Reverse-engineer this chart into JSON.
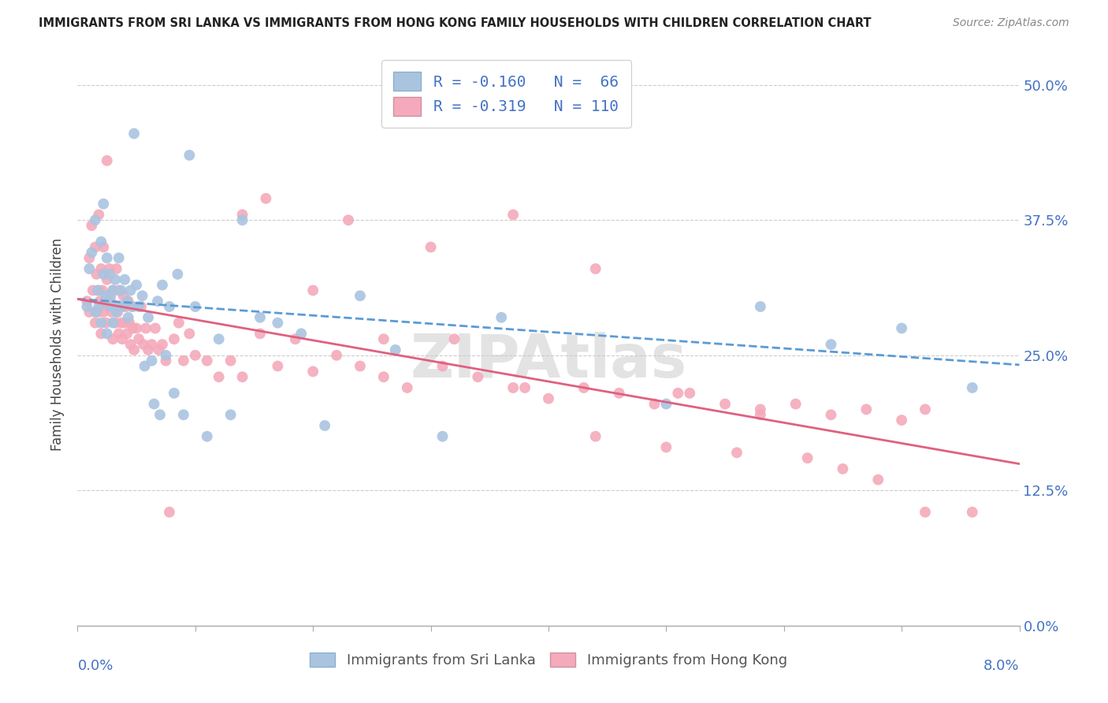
{
  "title": "IMMIGRANTS FROM SRI LANKA VS IMMIGRANTS FROM HONG KONG FAMILY HOUSEHOLDS WITH CHILDREN CORRELATION CHART",
  "source": "Source: ZipAtlas.com",
  "ylabel": "Family Households with Children",
  "yticks": [
    "0.0%",
    "12.5%",
    "25.0%",
    "37.5%",
    "50.0%"
  ],
  "ytick_vals": [
    0.0,
    0.125,
    0.25,
    0.375,
    0.5
  ],
  "xmin": 0.0,
  "xmax": 0.08,
  "ymin": 0.0,
  "ymax": 0.52,
  "legend_r_sl": "R = -0.160",
  "legend_n_sl": "N =  66",
  "legend_r_hk": "R = -0.319",
  "legend_n_hk": "N = 110",
  "sri_lanka_color": "#aac4e0",
  "hong_kong_color": "#f4aabb",
  "sri_lanka_line_color": "#5b9bd5",
  "hong_kong_line_color": "#e06080",
  "watermark": "ZIPAtlas",
  "sl_intercept": 0.295,
  "sl_slope": -0.8,
  "hk_intercept": 0.31,
  "hk_slope": -2.2,
  "sri_lanka_x": [
    0.0008,
    0.001,
    0.0012,
    0.0015,
    0.0015,
    0.0017,
    0.0018,
    0.002,
    0.002,
    0.0022,
    0.0022,
    0.0024,
    0.0025,
    0.0025,
    0.0027,
    0.0028,
    0.0028,
    0.003,
    0.003,
    0.0032,
    0.0033,
    0.0035,
    0.0035,
    0.0037,
    0.0038,
    0.004,
    0.0042,
    0.0043,
    0.0045,
    0.0047,
    0.0048,
    0.005,
    0.0052,
    0.0055,
    0.0057,
    0.006,
    0.0063,
    0.0065,
    0.0068,
    0.007,
    0.0072,
    0.0075,
    0.0078,
    0.0082,
    0.0085,
    0.009,
    0.0095,
    0.01,
    0.011,
    0.012,
    0.013,
    0.014,
    0.0155,
    0.017,
    0.019,
    0.021,
    0.024,
    0.027,
    0.031,
    0.036,
    0.042,
    0.05,
    0.058,
    0.064,
    0.07,
    0.076
  ],
  "sri_lanka_y": [
    0.295,
    0.33,
    0.345,
    0.29,
    0.375,
    0.31,
    0.295,
    0.28,
    0.355,
    0.325,
    0.39,
    0.305,
    0.27,
    0.34,
    0.325,
    0.305,
    0.295,
    0.28,
    0.31,
    0.32,
    0.29,
    0.295,
    0.34,
    0.31,
    0.295,
    0.32,
    0.3,
    0.285,
    0.31,
    0.295,
    0.455,
    0.315,
    0.295,
    0.305,
    0.24,
    0.285,
    0.245,
    0.205,
    0.3,
    0.195,
    0.315,
    0.25,
    0.295,
    0.215,
    0.325,
    0.195,
    0.435,
    0.295,
    0.175,
    0.265,
    0.195,
    0.375,
    0.285,
    0.28,
    0.27,
    0.185,
    0.305,
    0.255,
    0.175,
    0.285,
    0.47,
    0.205,
    0.295,
    0.26,
    0.275,
    0.22
  ],
  "hong_kong_x": [
    0.0008,
    0.001,
    0.001,
    0.0012,
    0.0013,
    0.0015,
    0.0015,
    0.0016,
    0.0017,
    0.0018,
    0.0018,
    0.0019,
    0.002,
    0.002,
    0.0021,
    0.0022,
    0.0022,
    0.0023,
    0.0024,
    0.0025,
    0.0025,
    0.0026,
    0.0027,
    0.0028,
    0.0029,
    0.003,
    0.003,
    0.0031,
    0.0032,
    0.0033,
    0.0034,
    0.0035,
    0.0035,
    0.0036,
    0.0037,
    0.0038,
    0.0039,
    0.004,
    0.0041,
    0.0042,
    0.0043,
    0.0044,
    0.0045,
    0.0046,
    0.0047,
    0.0048,
    0.005,
    0.0052,
    0.0054,
    0.0056,
    0.0058,
    0.006,
    0.0063,
    0.0066,
    0.0069,
    0.0072,
    0.0075,
    0.0078,
    0.0082,
    0.0086,
    0.009,
    0.0095,
    0.01,
    0.011,
    0.012,
    0.013,
    0.014,
    0.0155,
    0.017,
    0.0185,
    0.02,
    0.022,
    0.024,
    0.026,
    0.028,
    0.031,
    0.034,
    0.037,
    0.04,
    0.043,
    0.046,
    0.049,
    0.052,
    0.055,
    0.058,
    0.061,
    0.064,
    0.067,
    0.07,
    0.072,
    0.014,
    0.02,
    0.026,
    0.032,
    0.038,
    0.044,
    0.05,
    0.056,
    0.062,
    0.068,
    0.016,
    0.023,
    0.03,
    0.037,
    0.044,
    0.051,
    0.058,
    0.065,
    0.072,
    0.076
  ],
  "hong_kong_y": [
    0.3,
    0.34,
    0.29,
    0.37,
    0.31,
    0.28,
    0.35,
    0.325,
    0.29,
    0.31,
    0.38,
    0.3,
    0.27,
    0.33,
    0.31,
    0.29,
    0.35,
    0.3,
    0.28,
    0.32,
    0.43,
    0.295,
    0.33,
    0.3,
    0.29,
    0.265,
    0.31,
    0.295,
    0.28,
    0.33,
    0.29,
    0.27,
    0.31,
    0.295,
    0.28,
    0.265,
    0.305,
    0.28,
    0.295,
    0.27,
    0.3,
    0.28,
    0.26,
    0.295,
    0.275,
    0.255,
    0.275,
    0.265,
    0.295,
    0.26,
    0.275,
    0.255,
    0.26,
    0.275,
    0.255,
    0.26,
    0.245,
    0.105,
    0.265,
    0.28,
    0.245,
    0.27,
    0.25,
    0.245,
    0.23,
    0.245,
    0.23,
    0.27,
    0.24,
    0.265,
    0.235,
    0.25,
    0.24,
    0.23,
    0.22,
    0.24,
    0.23,
    0.22,
    0.21,
    0.22,
    0.215,
    0.205,
    0.215,
    0.205,
    0.195,
    0.205,
    0.195,
    0.2,
    0.19,
    0.2,
    0.38,
    0.31,
    0.265,
    0.265,
    0.22,
    0.175,
    0.165,
    0.16,
    0.155,
    0.135,
    0.395,
    0.375,
    0.35,
    0.38,
    0.33,
    0.215,
    0.2,
    0.145,
    0.105,
    0.105
  ]
}
